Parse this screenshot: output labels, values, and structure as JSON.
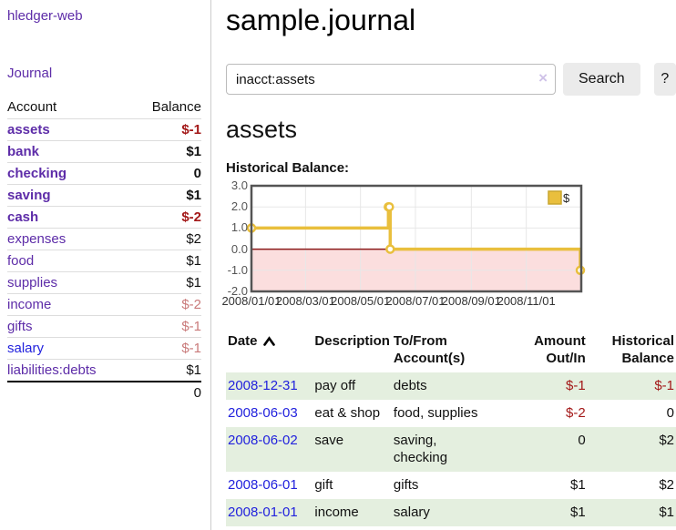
{
  "colors": {
    "brand_purple": "#5d2ca8",
    "link_blue": "#2222dd",
    "negative_red": "#a31818",
    "negative_muted_red": "#c97a7a",
    "row_stripe_green": "#e4efdf",
    "button_gray": "#ebebeb"
  },
  "sidebar": {
    "brand": "hledger-web",
    "nav": {
      "journal": "Journal"
    },
    "accounts_table": {
      "headers": {
        "account": "Account",
        "balance": "Balance"
      },
      "rows": [
        {
          "name": "assets",
          "balance": "$-1",
          "depth": 1,
          "bold": true,
          "neg": "strong"
        },
        {
          "name": "bank",
          "balance": "$1",
          "depth": 2,
          "bold": true
        },
        {
          "name": "checking",
          "balance": "0",
          "depth": 3,
          "bold": true
        },
        {
          "name": "saving",
          "balance": "$1",
          "depth": 3,
          "bold": true
        },
        {
          "name": "cash",
          "balance": "$-2",
          "depth": 2,
          "bold": true,
          "neg": "strong"
        },
        {
          "name": "expenses",
          "balance": "$2",
          "depth": 1
        },
        {
          "name": "food",
          "balance": "$1",
          "depth": 2
        },
        {
          "name": "supplies",
          "balance": "$1",
          "depth": 2
        },
        {
          "name": "income",
          "balance": "$-2",
          "depth": 1,
          "neg": "muted"
        },
        {
          "name": "gifts",
          "balance": "$-1",
          "depth": 2,
          "neg": "muted"
        },
        {
          "name": "salary",
          "balance": "$-1",
          "depth": 2,
          "neg": "muted",
          "blue": true
        },
        {
          "name": "liabilities:debts",
          "balance": "$1",
          "depth": 1
        }
      ],
      "total": "0"
    }
  },
  "header": {
    "title": "sample.journal"
  },
  "search": {
    "value": "inacct:assets",
    "clear_icon": "×",
    "button_label": "Search",
    "help_label": "?"
  },
  "account_page": {
    "heading": "assets",
    "chart_label": "Historical Balance:"
  },
  "chart_data": {
    "type": "line",
    "style": "step",
    "title": "Historical Balance:",
    "x_range": [
      "2008/01/01",
      "2009/01/01"
    ],
    "ylim": [
      -2,
      3
    ],
    "yticks": [
      "3.0",
      "2.0",
      "1.0",
      "0.0",
      "-1.0",
      "-2.0"
    ],
    "xticks": [
      "2008/01/01",
      "2008/03/01",
      "2008/05/01",
      "2008/07/01",
      "2008/09/01",
      "2008/11/01"
    ],
    "legend": {
      "label": "$",
      "position": "top-right",
      "swatch_color": "#e9bf3d"
    },
    "grid": true,
    "series": [
      {
        "name": "$",
        "color": "#e9bf3d",
        "points": [
          {
            "date": "2008/01/01",
            "value": 1
          },
          {
            "date": "2008/06/01",
            "value": 2
          },
          {
            "date": "2008/06/02",
            "value": 2
          },
          {
            "date": "2008/06/03",
            "value": 0
          },
          {
            "date": "2008/12/31",
            "value": -1
          }
        ]
      }
    ],
    "negative_region_color": "#fbdede",
    "zero_line_color": "#8b1a1a",
    "border_color": "#545454",
    "grid_color": "#e7e7e7"
  },
  "register_table": {
    "headers": {
      "date": "Date",
      "sort_icon": "chevron-up",
      "description": "Description",
      "accounts": "To/From Account(s)",
      "amount": "Amount Out/In",
      "balance": "Historical Balance"
    },
    "rows": [
      {
        "date": "2008-12-31",
        "description": "pay off",
        "accounts": "debts",
        "amount": "$-1",
        "balance": "$-1",
        "amount_neg": true,
        "balance_neg": true,
        "shade": true
      },
      {
        "date": "2008-06-03",
        "description": "eat & shop",
        "accounts": "food, supplies",
        "amount": "$-2",
        "balance": "0",
        "amount_neg": true
      },
      {
        "date": "2008-06-02",
        "description": "save",
        "accounts": "saving, checking",
        "amount": "0",
        "balance": "$2",
        "shade": true
      },
      {
        "date": "2008-06-01",
        "description": "gift",
        "accounts": "gifts",
        "amount": "$1",
        "balance": "$2"
      },
      {
        "date": "2008-01-01",
        "description": "income",
        "accounts": "salary",
        "amount": "$1",
        "balance": "$1",
        "shade": true
      }
    ]
  }
}
